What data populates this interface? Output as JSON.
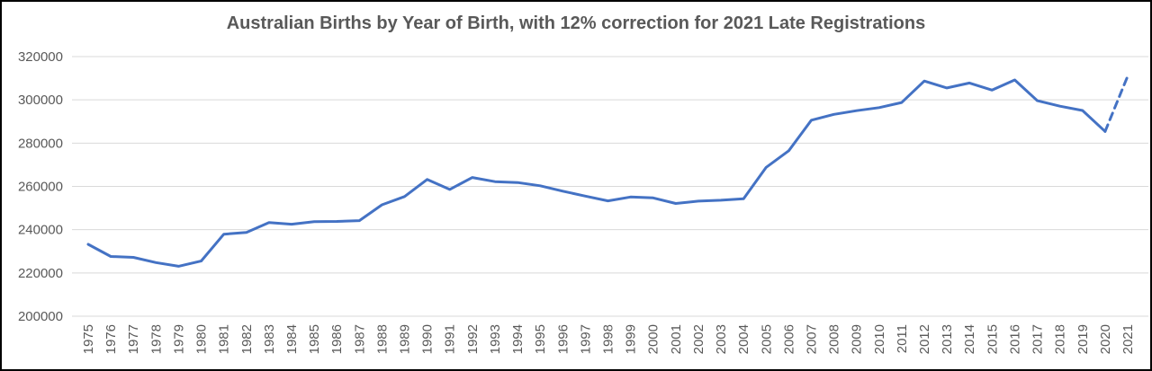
{
  "chart": {
    "title": "Australian Births by Year of Birth, with 12% correction for 2021 Late Registrations"
  },
  "chart_data": {
    "type": "line",
    "title": "Australian Births by Year of Birth, with 12% correction for 2021 Late Registrations",
    "x": [
      1975,
      1976,
      1977,
      1978,
      1979,
      1980,
      1981,
      1982,
      1983,
      1984,
      1985,
      1986,
      1987,
      1988,
      1989,
      1990,
      1991,
      1992,
      1993,
      1994,
      1995,
      1996,
      1997,
      1998,
      1999,
      2000,
      2001,
      2002,
      2003,
      2004,
      2005,
      2006,
      2007,
      2008,
      2009,
      2010,
      2011,
      2012,
      2013,
      2014,
      2015,
      2016,
      2017,
      2018,
      2019,
      2020,
      2021
    ],
    "series": [
      {
        "name": "births",
        "values": [
          233200,
          227600,
          227200,
          224800,
          223100,
          225500,
          237900,
          238700,
          243300,
          242500,
          243700,
          243800,
          244200,
          251500,
          255300,
          263200,
          258600,
          264100,
          262200,
          261800,
          260300,
          257800,
          255500,
          253300,
          255100,
          254700,
          252100,
          253200,
          253600,
          254300,
          268800,
          276500,
          290600,
          293300,
          295000,
          296400,
          298800,
          308700,
          305500,
          307800,
          304500,
          309200,
          299600,
          297100,
          295100,
          285400,
          311000
        ]
      }
    ],
    "dashed_segment": {
      "from_year": 2020,
      "to_year": 2021
    },
    "ylim": [
      200000,
      320000
    ],
    "ytick_step": 20000,
    "xlabel": "",
    "ylabel": "",
    "grid": "horizontal",
    "legend": "none",
    "colors": {
      "line": "#4472C4",
      "grid": "#D9D9D9",
      "tick_text": "#595959",
      "title_text": "#595959",
      "frame_border": "#000000",
      "background": "#FFFFFF"
    }
  }
}
